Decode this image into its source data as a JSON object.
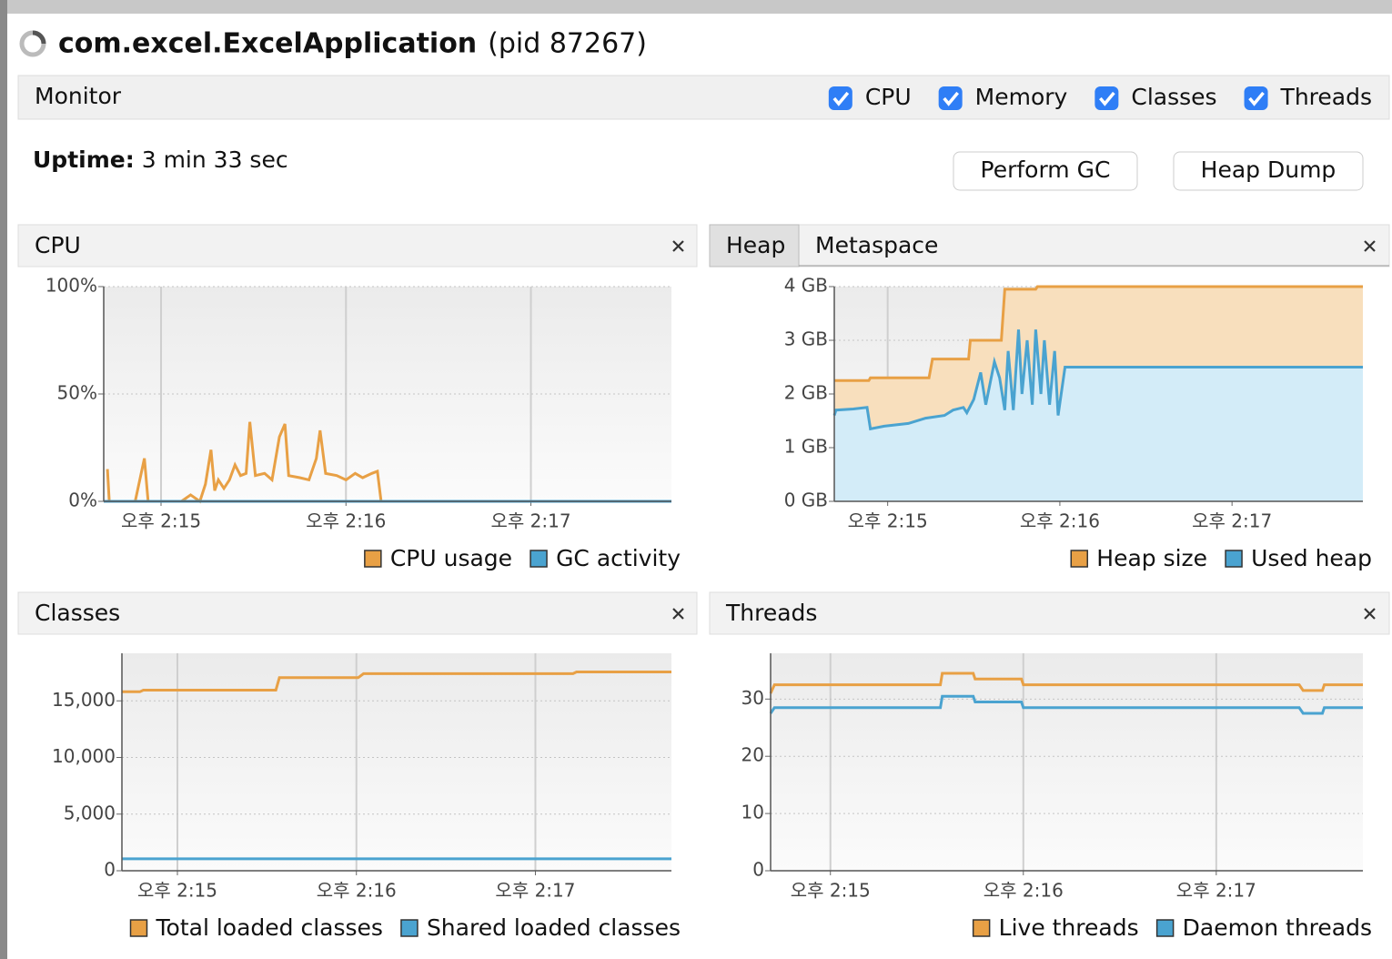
{
  "window": {
    "app": "com.excel.ExcelApplication",
    "pid": "(pid 87267)"
  },
  "monitor": {
    "title": "Monitor",
    "checkboxes": [
      "CPU",
      "Memory",
      "Classes",
      "Threads"
    ]
  },
  "uptime": {
    "label": "Uptime:",
    "value": "3 min 33 sec"
  },
  "buttons": [
    "Perform GC",
    "Heap Dump"
  ],
  "chart_data": [
    {
      "type": "line",
      "title": "CPU",
      "xlim": [
        854.69,
        857.76
      ],
      "xticks": [
        {
          "value": 855,
          "label": "오후 2:15"
        },
        {
          "value": 856,
          "label": "오후 2:16"
        },
        {
          "value": 857,
          "label": "오후 2:17"
        }
      ],
      "ylim": [
        0,
        100
      ],
      "yticks": [
        {
          "value": 0,
          "label": "0%"
        },
        {
          "value": 50,
          "label": "50%"
        },
        {
          "value": 100,
          "label": "100%"
        }
      ],
      "grid": true,
      "series": [
        {
          "name": "CPU usage",
          "color": "#e8a045",
          "x": [
            854.71,
            854.72,
            854.86,
            854.91,
            854.93,
            855.11,
            855.16,
            855.21,
            855.24,
            855.27,
            855.29,
            855.31,
            855.34,
            855.37,
            855.4,
            855.43,
            855.46,
            855.48,
            855.51,
            855.56,
            855.6,
            855.64,
            855.67,
            855.69,
            855.75,
            855.8,
            855.84,
            855.86,
            855.89,
            855.95,
            856.0,
            856.05,
            856.09,
            856.14,
            856.17,
            856.19,
            857.76
          ],
          "values": [
            15,
            0,
            0,
            20,
            0,
            0,
            3,
            0,
            8,
            24,
            5,
            10,
            6,
            10,
            17,
            12,
            13,
            37,
            12,
            13,
            10,
            30,
            36,
            12,
            11,
            10,
            20,
            33,
            13,
            12,
            10,
            13,
            11,
            13,
            14,
            0,
            0
          ]
        },
        {
          "name": "GC activity",
          "color": "#4aa3d0",
          "x": [
            854.69,
            857.76
          ],
          "values": [
            0,
            0
          ]
        }
      ]
    },
    {
      "type": "area",
      "tabs": [
        "Heap",
        "Metaspace"
      ],
      "xlim": [
        854.69,
        857.76
      ],
      "xticks": [
        {
          "value": 855,
          "label": "오후 2:15"
        },
        {
          "value": 856,
          "label": "오후 2:16"
        },
        {
          "value": 857,
          "label": "오후 2:17"
        }
      ],
      "ylim": [
        0,
        4
      ],
      "yticks": [
        {
          "value": 0,
          "label": "0 GB"
        },
        {
          "value": 1,
          "label": "1 GB"
        },
        {
          "value": 2,
          "label": "2 GB"
        },
        {
          "value": 3,
          "label": "3 GB"
        },
        {
          "value": 4,
          "label": "4 GB"
        }
      ],
      "grid": true,
      "series": [
        {
          "name": "Heap size",
          "color": "#e8a045",
          "fill": "#f8dfbd",
          "x": [
            854.69,
            854.89,
            854.9,
            855.24,
            855.26,
            855.47,
            855.48,
            855.66,
            855.68,
            855.86,
            855.87,
            857.76
          ],
          "values": [
            2.25,
            2.25,
            2.3,
            2.3,
            2.65,
            2.65,
            3.0,
            3.0,
            3.95,
            3.95,
            4.0,
            4.0
          ]
        },
        {
          "name": "Used heap",
          "color": "#4aa3d0",
          "fill": "#d3ecf8",
          "x": [
            854.69,
            854.7,
            854.8,
            854.88,
            854.9,
            854.98,
            855.12,
            855.22,
            855.33,
            855.38,
            855.44,
            855.46,
            855.5,
            855.54,
            855.57,
            855.62,
            855.65,
            855.68,
            855.7,
            855.73,
            855.76,
            855.78,
            855.81,
            855.84,
            855.86,
            855.89,
            855.91,
            855.94,
            855.97,
            855.99,
            856.03,
            857.76
          ],
          "values": [
            1.6,
            1.7,
            1.72,
            1.75,
            1.35,
            1.4,
            1.45,
            1.55,
            1.6,
            1.7,
            1.75,
            1.65,
            1.9,
            2.4,
            1.8,
            2.6,
            2.3,
            1.7,
            2.8,
            1.7,
            3.2,
            2.0,
            3.0,
            1.8,
            3.2,
            2.0,
            3.0,
            1.8,
            2.8,
            1.6,
            2.5,
            2.5
          ]
        }
      ]
    },
    {
      "type": "line",
      "title": "Classes",
      "xlim": [
        854.69,
        857.76
      ],
      "xticks": [
        {
          "value": 855,
          "label": "오후 2:15"
        },
        {
          "value": 856,
          "label": "오후 2:16"
        },
        {
          "value": 857,
          "label": "오후 2:17"
        }
      ],
      "ylim": [
        0,
        19200
      ],
      "yticks": [
        0,
        {
          "value": 5000,
          "label": "5,000"
        },
        {
          "value": 10000,
          "label": "10,000"
        },
        {
          "value": 15000,
          "label": "15,000"
        }
      ],
      "grid": true,
      "series": [
        {
          "name": "Total loaded classes",
          "color": "#e8a045",
          "x": [
            854.69,
            854.79,
            854.81,
            855.55,
            855.57,
            856.01,
            856.04,
            857.21,
            857.23,
            857.76
          ],
          "values": [
            15800,
            15800,
            15950,
            15950,
            17050,
            17050,
            17400,
            17400,
            17550,
            17550
          ]
        },
        {
          "name": "Shared loaded classes",
          "color": "#4aa3d0",
          "x": [
            854.69,
            857.76
          ],
          "values": [
            1050,
            1050
          ]
        }
      ]
    },
    {
      "type": "line",
      "title": "Threads",
      "xlim": [
        854.69,
        857.76
      ],
      "xticks": [
        {
          "value": 855,
          "label": "오후 2:15"
        },
        {
          "value": 856,
          "label": "오후 2:16"
        },
        {
          "value": 857,
          "label": "오후 2:17"
        }
      ],
      "ylim": [
        0,
        38
      ],
      "yticks": [
        0,
        10,
        20,
        30
      ],
      "grid": true,
      "series": [
        {
          "name": "Live threads",
          "color": "#e8a045",
          "x": [
            854.69,
            854.71,
            855.57,
            855.58,
            855.74,
            855.75,
            855.99,
            856.0,
            857.43,
            857.45,
            857.55,
            857.56,
            857.76
          ],
          "values": [
            31,
            32.5,
            32.5,
            34.5,
            34.5,
            33.5,
            33.5,
            32.5,
            32.5,
            31.5,
            31.5,
            32.5,
            32.5
          ]
        },
        {
          "name": "Daemon threads",
          "color": "#4aa3d0",
          "x": [
            854.69,
            854.71,
            855.57,
            855.58,
            855.74,
            855.75,
            855.99,
            856.0,
            857.43,
            857.45,
            857.55,
            857.56,
            857.76
          ],
          "values": [
            27.5,
            28.5,
            28.5,
            30.5,
            30.5,
            29.5,
            29.5,
            28.5,
            28.5,
            27.5,
            27.5,
            28.5,
            28.5
          ]
        }
      ]
    }
  ]
}
